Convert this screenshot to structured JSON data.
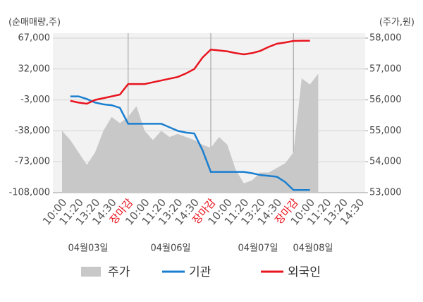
{
  "chart_data": {
    "type": "line",
    "y_axis_label": "(순매매량,주)",
    "y2_axis_label": "(주가,원)",
    "categories": [
      "10:00",
      null,
      "11:20",
      null,
      "13:20",
      null,
      "14:30",
      null,
      "장마감",
      null,
      "10:00",
      null,
      "11:20",
      null,
      "13:20",
      null,
      "14:30",
      null,
      "장마감",
      null,
      "10:00",
      null,
      "11:20",
      null,
      "13:20",
      null,
      "14:30",
      null,
      "장마감",
      null,
      "10:00",
      null,
      "11:20",
      null,
      "13:20",
      null,
      "14:30"
    ],
    "dates": [
      "04월03일",
      "04월06일",
      "04월07일",
      "04월08일"
    ],
    "ylim": [
      -108000,
      67000
    ],
    "yticks": [
      {
        "value": 67000,
        "label": "67,000"
      },
      {
        "value": 32000,
        "label": "32,000"
      },
      {
        "value": -3000,
        "label": "-3,000"
      },
      {
        "value": -38000,
        "label": "-38,000"
      },
      {
        "value": -73000,
        "label": "-73,000"
      },
      {
        "value": -108000,
        "label": "-108,000"
      }
    ],
    "y2lim": [
      53000,
      58000
    ],
    "y2ticks": [
      {
        "value": 58000,
        "label": "58,000"
      },
      {
        "value": 57000,
        "label": "57,000"
      },
      {
        "value": 56000,
        "label": "56,000"
      },
      {
        "value": 55000,
        "label": "55,000"
      },
      {
        "value": 54000,
        "label": "54,000"
      },
      {
        "value": 53000,
        "label": "53,000"
      }
    ],
    "grid": true,
    "series": [
      {
        "name": "주가",
        "color": "#c8c8c8",
        "axis": "y2",
        "kind": "area",
        "values": [
          55000,
          54700,
          54300,
          53900,
          54300,
          55000,
          55450,
          55250,
          55450,
          55800,
          55000,
          54700,
          55000,
          54800,
          54900,
          54800,
          54700,
          54550,
          54450,
          54800,
          54550,
          53750,
          53300,
          53400,
          53650,
          53650,
          53800,
          53950,
          54300,
          56700,
          56500,
          56850,
          null,
          null,
          null,
          null,
          null
        ]
      },
      {
        "name": "기관",
        "color": "#1a7fd0",
        "values": [
          null,
          1000,
          1000,
          -2000,
          -6000,
          -8000,
          -9000,
          -12000,
          -30000,
          -30000,
          -30000,
          -30000,
          -30000,
          -34000,
          -38000,
          -40000,
          -41000,
          -60000,
          -84500,
          -84500,
          -84500,
          -84500,
          -84500,
          -86000,
          -88000,
          -89000,
          -90000,
          -96000,
          -105000,
          -105000,
          -105000,
          null,
          null,
          null,
          null,
          null,
          null
        ]
      },
      {
        "name": "외국인",
        "color": "#e8141e",
        "values": [
          null,
          -4000,
          -6000,
          -7300,
          -3000,
          -1000,
          1000,
          3100,
          15000,
          15000,
          15000,
          17000,
          19000,
          21000,
          23000,
          27000,
          32000,
          45000,
          54000,
          53000,
          52000,
          50000,
          48600,
          50000,
          52600,
          57000,
          60600,
          62000,
          63800,
          64000,
          64000,
          null,
          null,
          null,
          null,
          null,
          null
        ]
      }
    ]
  }
}
